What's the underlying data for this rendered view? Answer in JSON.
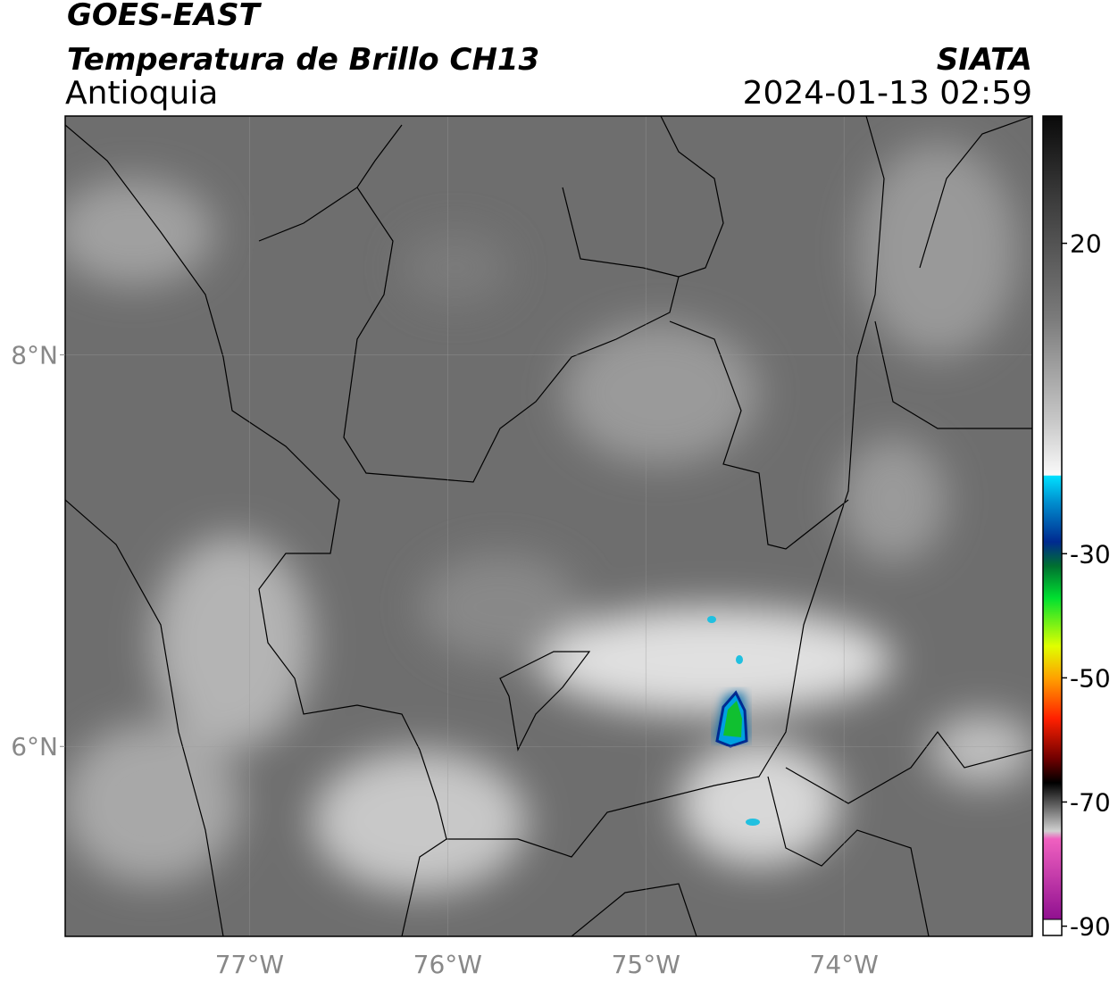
{
  "header": {
    "title": "GOES-EAST",
    "subtitle": "Temperatura de Brillo CH13",
    "region": "Antioquia",
    "source": "SIATA",
    "datetime": "2024-01-13 02:59"
  },
  "map": {
    "xlim": [
      -77.93,
      -73.05
    ],
    "ylim": [
      5.03,
      9.22
    ],
    "xticks": [
      {
        "value": -77,
        "label": "77°W"
      },
      {
        "value": -76,
        "label": "76°W"
      },
      {
        "value": -75,
        "label": "75°W"
      },
      {
        "value": -74,
        "label": "74°W"
      }
    ],
    "yticks": [
      {
        "value": 6,
        "label": "6°N"
      },
      {
        "value": 8,
        "label": "8°N"
      }
    ],
    "grid": true
  },
  "colorbar": {
    "lim": [
      -91.5,
      40.5
    ],
    "ticks": [
      20,
      -30,
      -50,
      -70,
      -90
    ]
  }
}
